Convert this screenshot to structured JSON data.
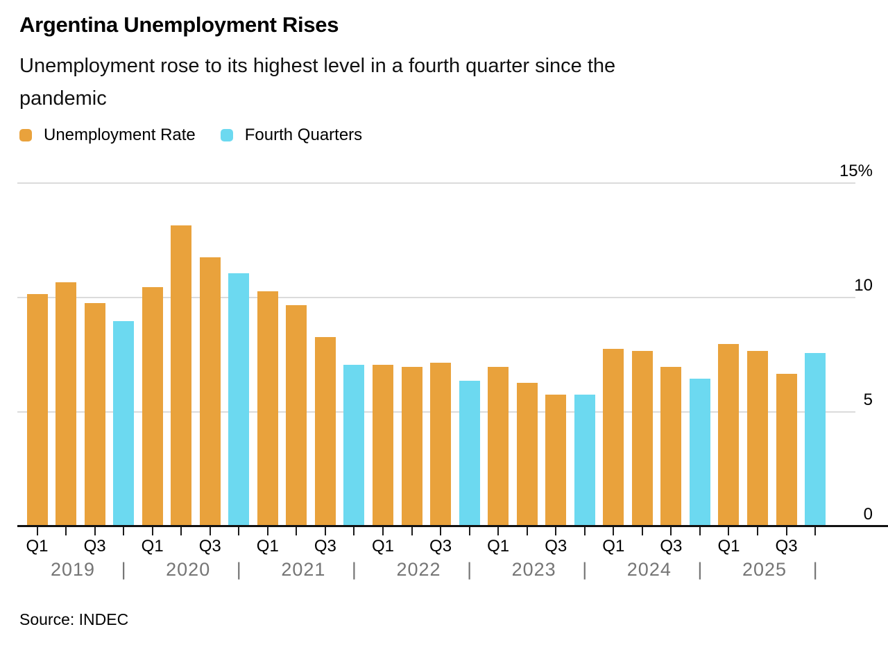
{
  "header": {
    "title": "Argentina Unemployment Rises",
    "subtitle_line1": "Unemployment rose to its highest level in a fourth quarter since the",
    "subtitle_line2": "pandemic"
  },
  "legend": {
    "items": [
      {
        "label": "Unemployment Rate",
        "color": "#E9A23C"
      },
      {
        "label": "Fourth Quarters",
        "color": "#6CD9F0"
      }
    ]
  },
  "source_note": "Source: INDEC",
  "chart_data": {
    "type": "bar",
    "title": "Argentina Unemployment Rises",
    "subtitle": "Unemployment rose to its highest level in a fourth quarter since the pandemic",
    "unit": "%",
    "ylim": [
      0,
      15
    ],
    "yticks": [
      0,
      5,
      10,
      15
    ],
    "ytick_labels": [
      "0",
      "5",
      "10",
      "15%"
    ],
    "grid": "horizontal",
    "legend_position": "top-left",
    "x_quarter_labels_shown": [
      "Q1",
      "Q3"
    ],
    "year_separator": "|",
    "years": [
      "2019",
      "2020",
      "2021",
      "2022",
      "2023",
      "2024",
      "2025"
    ],
    "series": [
      {
        "name": "Unemployment Rate",
        "color": "#E9A23C"
      },
      {
        "name": "Fourth Quarters",
        "color": "#6CD9F0"
      }
    ],
    "points": [
      {
        "year": "2019",
        "quarter": "Q1",
        "value": 10.1,
        "series": "Unemployment Rate"
      },
      {
        "year": "2019",
        "quarter": "Q2",
        "value": 10.6,
        "series": "Unemployment Rate"
      },
      {
        "year": "2019",
        "quarter": "Q3",
        "value": 9.7,
        "series": "Unemployment Rate"
      },
      {
        "year": "2019",
        "quarter": "Q4",
        "value": 8.9,
        "series": "Fourth Quarters"
      },
      {
        "year": "2020",
        "quarter": "Q1",
        "value": 10.4,
        "series": "Unemployment Rate"
      },
      {
        "year": "2020",
        "quarter": "Q2",
        "value": 13.1,
        "series": "Unemployment Rate"
      },
      {
        "year": "2020",
        "quarter": "Q3",
        "value": 11.7,
        "series": "Unemployment Rate"
      },
      {
        "year": "2020",
        "quarter": "Q4",
        "value": 11.0,
        "series": "Fourth Quarters"
      },
      {
        "year": "2021",
        "quarter": "Q1",
        "value": 10.2,
        "series": "Unemployment Rate"
      },
      {
        "year": "2021",
        "quarter": "Q2",
        "value": 9.6,
        "series": "Unemployment Rate"
      },
      {
        "year": "2021",
        "quarter": "Q3",
        "value": 8.2,
        "series": "Unemployment Rate"
      },
      {
        "year": "2021",
        "quarter": "Q4",
        "value": 7.0,
        "series": "Fourth Quarters"
      },
      {
        "year": "2022",
        "quarter": "Q1",
        "value": 7.0,
        "series": "Unemployment Rate"
      },
      {
        "year": "2022",
        "quarter": "Q2",
        "value": 6.9,
        "series": "Unemployment Rate"
      },
      {
        "year": "2022",
        "quarter": "Q3",
        "value": 7.1,
        "series": "Unemployment Rate"
      },
      {
        "year": "2022",
        "quarter": "Q4",
        "value": 6.3,
        "series": "Fourth Quarters"
      },
      {
        "year": "2023",
        "quarter": "Q1",
        "value": 6.9,
        "series": "Unemployment Rate"
      },
      {
        "year": "2023",
        "quarter": "Q2",
        "value": 6.2,
        "series": "Unemployment Rate"
      },
      {
        "year": "2023",
        "quarter": "Q3",
        "value": 5.7,
        "series": "Unemployment Rate"
      },
      {
        "year": "2023",
        "quarter": "Q4",
        "value": 5.7,
        "series": "Fourth Quarters"
      },
      {
        "year": "2024",
        "quarter": "Q1",
        "value": 7.7,
        "series": "Unemployment Rate"
      },
      {
        "year": "2024",
        "quarter": "Q2",
        "value": 7.6,
        "series": "Unemployment Rate"
      },
      {
        "year": "2024",
        "quarter": "Q3",
        "value": 6.9,
        "series": "Unemployment Rate"
      },
      {
        "year": "2024",
        "quarter": "Q4",
        "value": 6.4,
        "series": "Fourth Quarters"
      },
      {
        "year": "2025",
        "quarter": "Q1",
        "value": 7.9,
        "series": "Unemployment Rate"
      },
      {
        "year": "2025",
        "quarter": "Q2",
        "value": 7.6,
        "series": "Unemployment Rate"
      },
      {
        "year": "2025",
        "quarter": "Q3",
        "value": 6.6,
        "series": "Unemployment Rate"
      },
      {
        "year": "2025",
        "quarter": "Q4",
        "value": 7.5,
        "series": "Fourth Quarters"
      }
    ]
  }
}
